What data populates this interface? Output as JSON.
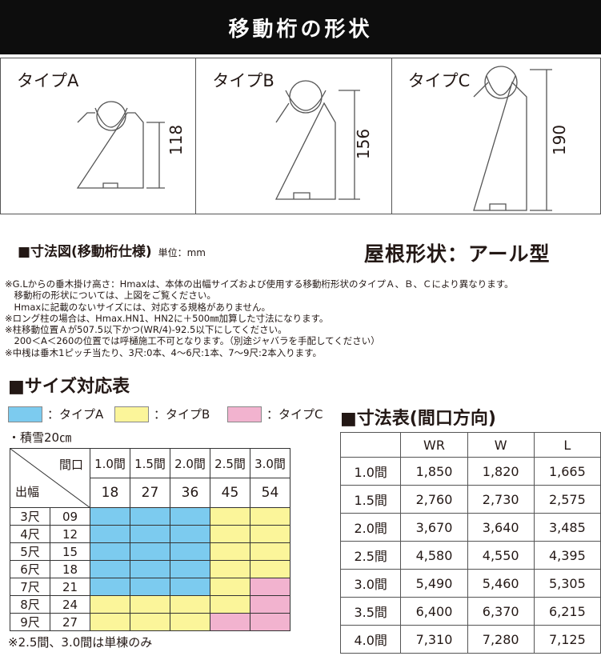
{
  "title": "移動桁の形状",
  "types": [
    {
      "label": "タイプA",
      "height": "118"
    },
    {
      "label": "タイプB",
      "height": "156"
    },
    {
      "label": "タイプC",
      "height": "190"
    }
  ],
  "dim_heading": "■寸法図(移動桁仕様)",
  "unit": "単位：mm",
  "roof_shape": "屋根形状：アール型",
  "notes": "※G.Lからの垂木掛け高さ：Hmaxは、本体の出幅サイズおよび使用する移動桁形状のタイプＡ、Ｂ、Ｃにより異なります。\n　移動桁の形状については、上図をご覧ください。\n　Hmaxに記載のないサイズには、対応する規格がありません。\n※ロング柱の場合は、Hmax.HN1、HN2に＋500㎜加算した寸法になります。\n※柱移動位置Ａが507.5以下かつ(WR/4)-92.5以下にしてください。\n　200＜A＜260の位置では呼樋施工不可となります。（別途ジャバラを手配してください）\n※中桟は垂木1ピッチ当たり、3尺:0本、4～6尺:1本、7～9尺:2本入ります。",
  "size_table": {
    "heading": "■サイズ対応表",
    "legend": [
      {
        "label": "：タイプA",
        "color": "#7ccbef"
      },
      {
        "label": "：タイプB",
        "color": "#fbf59a"
      },
      {
        "label": "：タイプC",
        "color": "#f2b3cf"
      }
    ],
    "snow": "・積雪20㎝",
    "corner_top": "間口",
    "corner_left": "出幅",
    "columns": [
      {
        "label": "1.0間",
        "code": "18"
      },
      {
        "label": "1.5間",
        "code": "27"
      },
      {
        "label": "2.0間",
        "code": "36"
      },
      {
        "label": "2.5間",
        "code": "45"
      },
      {
        "label": "3.0間",
        "code": "54"
      }
    ],
    "rows": [
      {
        "label": "3尺",
        "code": "09",
        "types": [
          "A",
          "A",
          "A",
          "B",
          "B"
        ]
      },
      {
        "label": "4尺",
        "code": "12",
        "types": [
          "A",
          "A",
          "A",
          "B",
          "B"
        ]
      },
      {
        "label": "5尺",
        "code": "15",
        "types": [
          "A",
          "A",
          "A",
          "B",
          "B"
        ]
      },
      {
        "label": "6尺",
        "code": "18",
        "types": [
          "A",
          "A",
          "A",
          "B",
          "B"
        ]
      },
      {
        "label": "7尺",
        "code": "21",
        "types": [
          "A",
          "A",
          "A",
          "B",
          "C"
        ]
      },
      {
        "label": "8尺",
        "code": "24",
        "types": [
          "B",
          "B",
          "B",
          "B",
          "C"
        ]
      },
      {
        "label": "9尺",
        "code": "27",
        "types": [
          "B",
          "B",
          "B",
          "C",
          "C"
        ]
      }
    ],
    "note": "※2.5間、3.0間は単棟のみ"
  },
  "dim_table": {
    "heading": "■寸法表(間口方向)",
    "headers": [
      "",
      "WR",
      "W",
      "L"
    ],
    "rows": [
      [
        "1.0間",
        "1,850",
        "1,820",
        "1,665"
      ],
      [
        "1.5間",
        "2,760",
        "2,730",
        "2,575"
      ],
      [
        "2.0間",
        "3,670",
        "3,640",
        "3,485"
      ],
      [
        "2.5間",
        "4,580",
        "4,550",
        "4,395"
      ],
      [
        "3.0間",
        "5,490",
        "5,460",
        "5,305"
      ],
      [
        "3.5間",
        "6,400",
        "6,370",
        "6,215"
      ],
      [
        "4.0間",
        "7,310",
        "7,280",
        "7,125"
      ]
    ]
  }
}
